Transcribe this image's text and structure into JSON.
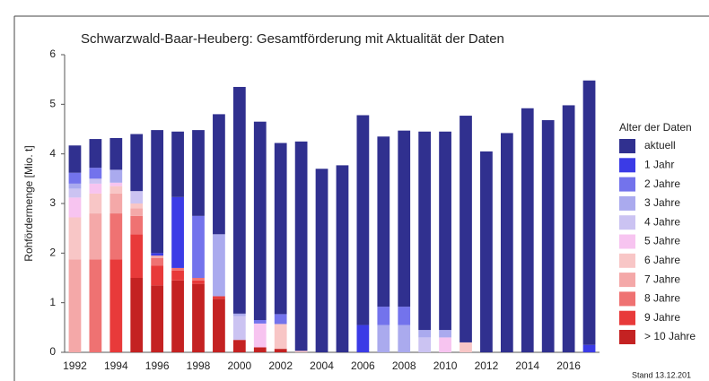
{
  "chart_data": {
    "type": "stacked_bar",
    "title": "Schwarzwald-Baar-Heuberg: Gesamtförderung mit Aktualität der Daten",
    "y_label": "Rohfördermenge [Mio. t]",
    "legend_title": "Alter der Daten",
    "legend": "right",
    "note": "Stand 13.12.201",
    "categories": [
      "1992",
      null,
      "1994",
      null,
      "1996",
      null,
      "1998",
      null,
      "2000",
      null,
      "2002",
      null,
      "2004",
      null,
      "2006",
      null,
      "2008",
      null,
      "2010",
      null,
      "2012",
      null,
      "2014",
      null,
      "2016",
      null
    ],
    "ylim": [
      0,
      6
    ],
    "yticks": [
      0,
      1,
      2,
      3,
      4,
      5,
      6
    ],
    "series": [
      {
        "name": "aktuell",
        "color": "#30308f",
        "values": [
          0.55,
          0.58,
          0.64,
          1.15,
          2.48,
          1.32,
          1.73,
          2.42,
          4.57,
          4.0,
          3.45,
          4.22,
          3.7,
          3.77,
          4.23,
          3.43,
          3.55,
          4.0,
          4.0,
          4.57,
          4.05,
          4.42,
          4.92,
          4.68,
          4.98,
          5.33
        ]
      },
      {
        "name": "1 Jahr",
        "color": "#3b3be6",
        "values": [
          0,
          0,
          0,
          0,
          0.05,
          1.43,
          0,
          0,
          0,
          0,
          0,
          0,
          0,
          0,
          0.55,
          0,
          0,
          0,
          0,
          0,
          0,
          0,
          0,
          0,
          0,
          0.15
        ]
      },
      {
        "name": "2 Jahre",
        "color": "#7373ec",
        "values": [
          0.22,
          0.22,
          0,
          0,
          0,
          0,
          1.25,
          0,
          0,
          0.07,
          0.2,
          0,
          0,
          0,
          0,
          0.37,
          0.37,
          0,
          0,
          0,
          0,
          0,
          0,
          0,
          0,
          0
        ]
      },
      {
        "name": "3 Jahre",
        "color": "#aaaaee",
        "values": [
          0.1,
          0,
          0.26,
          0,
          0,
          0,
          0,
          1.25,
          0.05,
          0,
          0,
          0,
          0,
          0,
          0,
          0.55,
          0.55,
          0.15,
          0.15,
          0,
          0,
          0,
          0,
          0,
          0,
          0
        ]
      },
      {
        "name": "4 Jahre",
        "color": "#cbc3f2",
        "values": [
          0.18,
          0.1,
          0,
          0.25,
          0,
          0,
          0,
          0,
          0.48,
          0,
          0,
          0,
          0,
          0,
          0,
          0,
          0,
          0.3,
          0,
          0,
          0,
          0,
          0,
          0,
          0,
          0
        ]
      },
      {
        "name": "5 Jahre",
        "color": "#f7c4f0",
        "values": [
          0.4,
          0.2,
          0.07,
          0,
          0,
          0,
          0,
          0,
          0,
          0.48,
          0,
          0,
          0,
          0,
          0,
          0,
          0,
          0,
          0.3,
          0,
          0,
          0,
          0,
          0,
          0,
          0
        ]
      },
      {
        "name": "6 Jahre",
        "color": "#f8c6c6",
        "values": [
          0.85,
          0.4,
          0.15,
          0.1,
          0,
          0,
          0,
          0,
          0,
          0,
          0.5,
          0.03,
          0,
          0,
          0,
          0,
          0,
          0,
          0,
          0.2,
          0,
          0,
          0,
          0,
          0,
          0
        ]
      },
      {
        "name": "7 Jahre",
        "color": "#f4a8a8",
        "values": [
          1.87,
          0.93,
          0.4,
          0.15,
          0.05,
          0,
          0,
          0,
          0,
          0,
          0,
          0,
          0,
          0,
          0,
          0,
          0,
          0,
          0,
          0,
          0,
          0,
          0,
          0,
          0,
          0
        ]
      },
      {
        "name": "8 Jahre",
        "color": "#ef7272",
        "values": [
          0,
          1.87,
          0.93,
          0.37,
          0.15,
          0.05,
          0.05,
          0,
          0,
          0,
          0,
          0,
          0,
          0,
          0,
          0,
          0,
          0,
          0,
          0,
          0,
          0,
          0,
          0,
          0,
          0
        ]
      },
      {
        "name": "9 Jahre",
        "color": "#e83a3a",
        "values": [
          0,
          0,
          1.87,
          0.88,
          0.4,
          0.2,
          0.07,
          0.05,
          0,
          0,
          0,
          0,
          0,
          0,
          0,
          0,
          0,
          0,
          0,
          0,
          0,
          0,
          0,
          0,
          0,
          0
        ]
      },
      {
        "name": "> 10 Jahre",
        "color": "#c42222",
        "values": [
          0,
          0,
          0,
          1.5,
          1.35,
          1.45,
          1.38,
          1.08,
          0.25,
          0.1,
          0.07,
          0,
          0,
          0,
          0,
          0,
          0,
          0,
          0,
          0,
          0,
          0,
          0,
          0,
          0,
          0
        ]
      }
    ]
  }
}
